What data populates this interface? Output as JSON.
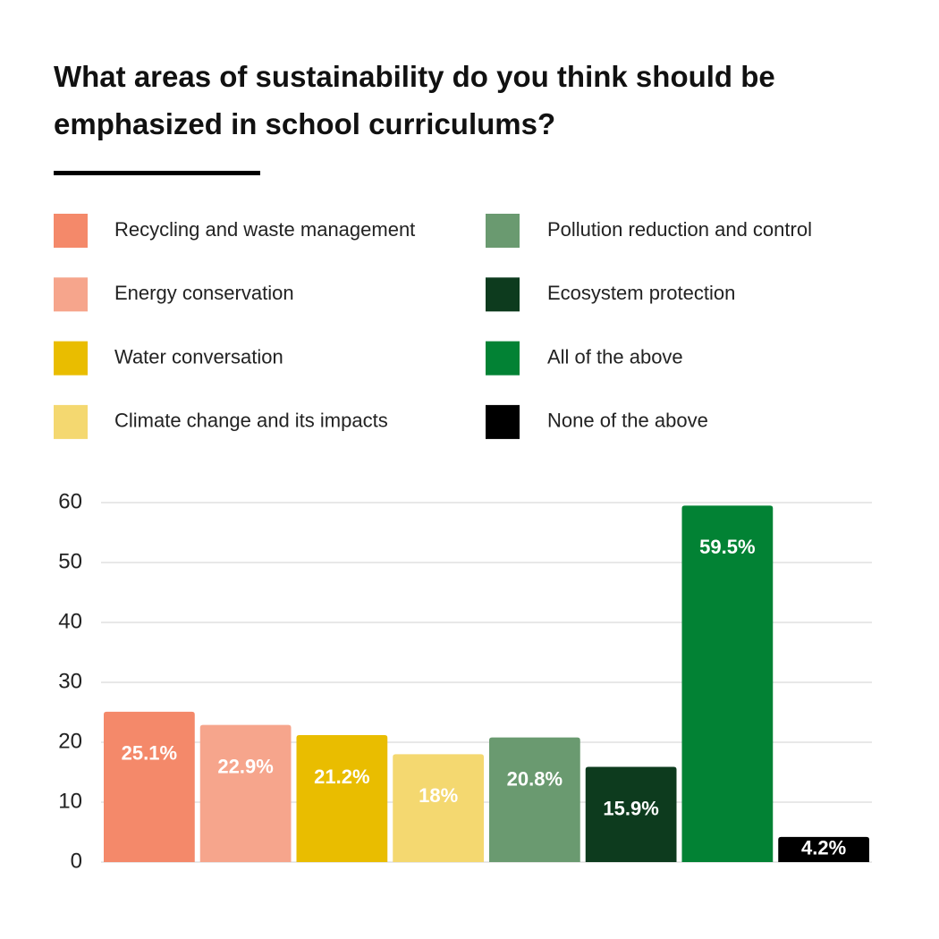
{
  "chart_data": {
    "type": "bar",
    "title": [
      "What areas of sustainability do you think should be",
      "emphasized in school curriculums?"
    ],
    "categories": [
      "Recycling and waste management",
      "Energy conservation",
      "Water conversation",
      "Climate change and its impacts",
      "Pollution reduction and control",
      "Ecosystem protection",
      "All of the above",
      "None of the above"
    ],
    "colors": [
      "#f4896a",
      "#f6a58c",
      "#e9bd00",
      "#f4d870",
      "#6a9a70",
      "#0d3b1e",
      "#028234",
      "#000000"
    ],
    "values": [
      25.1,
      22.9,
      21.2,
      18,
      20.8,
      15.9,
      59.5,
      4.2
    ],
    "value_labels": [
      "25.1%",
      "22.9%",
      "21.2%",
      "18%",
      "20.8%",
      "15.9%",
      "59.5%",
      "4.2%"
    ],
    "ylim": [
      0,
      60
    ],
    "yticks": [
      0,
      10,
      20,
      30,
      40,
      50,
      60
    ],
    "grid": true
  }
}
